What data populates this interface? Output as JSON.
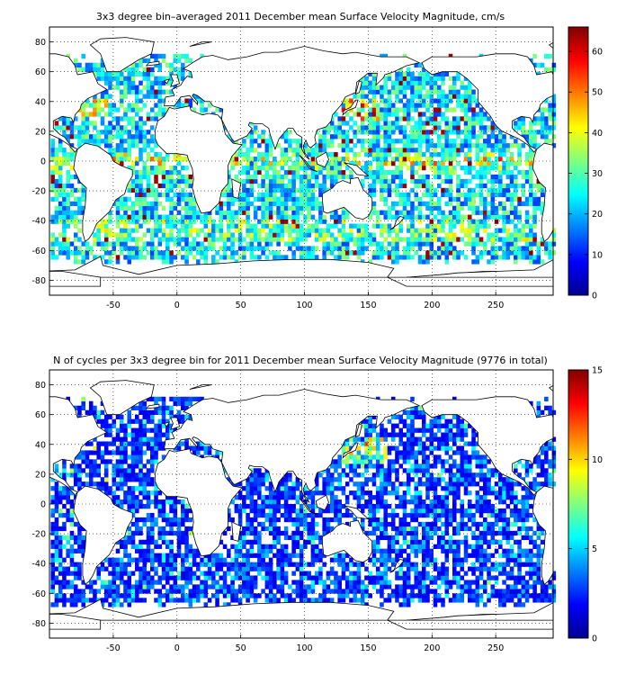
{
  "panels": [
    {
      "title": "3x3 degree bin–averaged 2011 December mean Surface Velocity Magnitude, cm/s",
      "x_ticks": [
        "-50",
        "0",
        "50",
        "100",
        "150",
        "200",
        "250"
      ],
      "y_ticks": [
        "80",
        "60",
        "40",
        "20",
        "0",
        "-20",
        "-40",
        "-60",
        "-80"
      ],
      "colorbar_ticks": [
        "0",
        "10",
        "20",
        "30",
        "40",
        "50",
        "60"
      ],
      "colorbar_range": [
        0,
        66
      ],
      "quantity": "velocity"
    },
    {
      "title": "N of cycles per 3x3 degree bin for 2011 December mean Surface Velocity Magnitude (9776 in total)",
      "x_ticks": [
        "-50",
        "0",
        "50",
        "100",
        "150",
        "200",
        "250"
      ],
      "y_ticks": [
        "80",
        "60",
        "40",
        "20",
        "0",
        "-20",
        "-40",
        "-60",
        "-80"
      ],
      "colorbar_ticks": [
        "0",
        "5",
        "10",
        "15"
      ],
      "colorbar_range": [
        0,
        15
      ],
      "quantity": "count"
    }
  ],
  "map": {
    "lon_range": [
      -100,
      295
    ],
    "lat_range": [
      -90,
      90
    ],
    "bin_size_deg": 3,
    "colormap": "jet",
    "gridlines": "dotted"
  }
}
